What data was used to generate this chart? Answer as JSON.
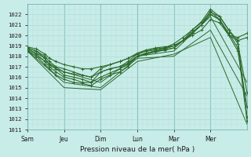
{
  "xlabel": "Pression niveau de la mer( hPa )",
  "background_color": "#c8ece8",
  "grid_color_major": "#a8d8d0",
  "grid_color_minor": "#b8e0da",
  "line_color": "#2d6a2d",
  "ylim": [
    1011,
    1023
  ],
  "yticks": [
    1011,
    1012,
    1013,
    1014,
    1015,
    1016,
    1017,
    1018,
    1019,
    1020,
    1021,
    1022
  ],
  "xtick_labels": [
    "Sam",
    "Jeu",
    "Dim",
    "Lun",
    "Mar",
    "Mer"
  ],
  "xtick_positions": [
    0.0,
    0.167,
    0.333,
    0.5,
    0.667,
    0.833
  ],
  "series": [
    {
      "x": [
        0.0,
        0.04,
        0.08,
        0.1,
        0.13,
        0.167,
        0.21,
        0.25,
        0.29,
        0.333,
        0.375,
        0.42,
        0.458,
        0.5,
        0.54,
        0.583,
        0.625,
        0.667,
        0.708,
        0.75,
        0.792,
        0.833,
        0.875,
        0.917,
        0.958,
        1.0
      ],
      "y": [
        1018.8,
        1018.5,
        1017.8,
        1017.2,
        1016.8,
        1016.5,
        1016.3,
        1016.2,
        1016.0,
        1016.8,
        1017.2,
        1017.5,
        1017.8,
        1018.2,
        1018.5,
        1018.6,
        1018.8,
        1019.2,
        1019.8,
        1020.5,
        1021.2,
        1022.2,
        1021.8,
        1020.5,
        1019.2,
        1014.5
      ]
    },
    {
      "x": [
        0.0,
        0.04,
        0.08,
        0.1,
        0.13,
        0.167,
        0.21,
        0.25,
        0.29,
        0.333,
        0.375,
        0.42,
        0.458,
        0.5,
        0.54,
        0.583,
        0.625,
        0.667,
        0.708,
        0.75,
        0.792,
        0.833,
        0.875,
        0.917,
        0.958,
        1.0
      ],
      "y": [
        1018.5,
        1018.0,
        1017.2,
        1016.8,
        1016.2,
        1015.8,
        1015.5,
        1015.4,
        1015.2,
        1015.8,
        1016.2,
        1016.5,
        1017.0,
        1018.0,
        1018.3,
        1018.5,
        1018.7,
        1019.0,
        1019.5,
        1020.2,
        1021.0,
        1022.0,
        1021.5,
        1020.0,
        1018.5,
        1013.2
      ]
    },
    {
      "x": [
        0.0,
        0.04,
        0.08,
        0.1,
        0.13,
        0.167,
        0.21,
        0.25,
        0.29,
        0.333,
        0.375,
        0.42,
        0.458,
        0.5,
        0.54,
        0.583,
        0.625,
        0.667,
        0.708,
        0.75,
        0.792,
        0.833,
        0.875,
        0.917,
        0.958,
        1.0
      ],
      "y": [
        1018.6,
        1018.2,
        1017.5,
        1017.0,
        1016.5,
        1016.0,
        1015.8,
        1015.5,
        1015.5,
        1016.0,
        1016.4,
        1016.8,
        1017.2,
        1018.0,
        1018.2,
        1018.4,
        1018.6,
        1018.8,
        1019.5,
        1020.3,
        1021.0,
        1022.3,
        1021.5,
        1020.2,
        1018.8,
        1011.8
      ]
    },
    {
      "x": [
        0.0,
        0.04,
        0.08,
        0.1,
        0.13,
        0.167,
        0.21,
        0.25,
        0.29,
        0.333,
        0.375,
        0.42,
        0.458,
        0.5,
        0.54,
        0.583,
        0.625,
        0.667,
        0.708,
        0.75,
        0.792,
        0.833,
        0.875,
        0.917,
        0.958,
        1.0
      ],
      "y": [
        1018.7,
        1018.3,
        1017.8,
        1017.2,
        1016.8,
        1016.2,
        1016.0,
        1015.8,
        1015.5,
        1016.5,
        1016.8,
        1017.0,
        1017.3,
        1018.0,
        1018.3,
        1018.5,
        1018.6,
        1018.8,
        1019.5,
        1020.5,
        1021.3,
        1022.5,
        1021.8,
        1020.5,
        1019.5,
        1012.2
      ]
    },
    {
      "x": [
        0.0,
        0.04,
        0.08,
        0.1,
        0.13,
        0.167,
        0.21,
        0.25,
        0.29,
        0.333,
        0.375,
        0.42,
        0.458,
        0.5,
        0.54,
        0.583,
        0.625,
        0.667,
        0.708,
        0.75,
        0.792,
        0.833,
        0.875,
        0.917,
        0.958,
        1.0
      ],
      "y": [
        1018.8,
        1018.5,
        1018.0,
        1017.5,
        1017.0,
        1016.8,
        1016.5,
        1016.2,
        1016.0,
        1016.5,
        1016.8,
        1017.0,
        1017.5,
        1018.2,
        1018.5,
        1018.7,
        1018.8,
        1019.0,
        1019.5,
        1020.2,
        1021.0,
        1022.0,
        1021.5,
        1020.0,
        1019.5,
        1019.8
      ],
      "marker": true
    },
    {
      "x": [
        0.0,
        0.04,
        0.08,
        0.1,
        0.13,
        0.167,
        0.21,
        0.25,
        0.29,
        0.333,
        0.375,
        0.42,
        0.458,
        0.5,
        0.54,
        0.583,
        0.625,
        0.667,
        0.708,
        0.75,
        0.792,
        0.833,
        0.875,
        0.917,
        0.958,
        1.0
      ],
      "y": [
        1018.9,
        1018.7,
        1018.2,
        1017.8,
        1017.5,
        1017.2,
        1017.0,
        1016.8,
        1016.8,
        1017.0,
        1017.2,
        1017.5,
        1017.8,
        1018.3,
        1018.6,
        1018.8,
        1018.9,
        1019.0,
        1019.5,
        1020.0,
        1020.5,
        1021.5,
        1021.2,
        1020.0,
        1019.8,
        1020.2
      ],
      "marker": true
    },
    {
      "x": [
        0.0,
        0.167,
        0.333,
        0.5,
        0.667,
        0.833,
        1.0
      ],
      "y": [
        1018.5,
        1016.5,
        1015.5,
        1018.0,
        1018.5,
        1021.8,
        1015.5
      ]
    },
    {
      "x": [
        0.0,
        0.167,
        0.333,
        0.5,
        0.667,
        0.833,
        1.0
      ],
      "y": [
        1018.5,
        1015.5,
        1015.0,
        1017.8,
        1018.0,
        1020.5,
        1014.2
      ]
    },
    {
      "x": [
        0.0,
        0.167,
        0.333,
        0.5,
        0.667,
        0.833,
        1.0
      ],
      "y": [
        1018.5,
        1015.0,
        1014.8,
        1017.5,
        1018.2,
        1019.8,
        1011.5
      ]
    }
  ]
}
